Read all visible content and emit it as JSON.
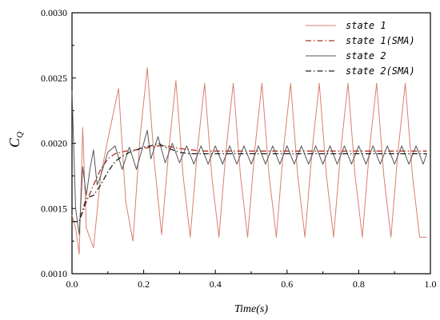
{
  "chart_data": {
    "type": "line",
    "xlabel": "Time(s)",
    "ylabel": "C",
    "ylabel_sub": "Q",
    "xlim": [
      0,
      1.0
    ],
    "ylim": [
      0.001,
      0.003
    ],
    "xticks": [
      "0.0",
      "0.2",
      "0.4",
      "0.6",
      "0.8",
      "1.0"
    ],
    "yticks": [
      "0.0010",
      "0.0015",
      "0.0020",
      "0.0025",
      "0.0030"
    ],
    "legend_position": "top-right",
    "series": [
      {
        "name": "state 1",
        "color": "#d9806e",
        "style": "solid",
        "x": [
          0.0,
          0.01,
          0.02,
          0.03,
          0.04,
          0.06,
          0.08,
          0.1,
          0.13,
          0.15,
          0.17,
          0.19,
          0.21,
          0.23,
          0.25,
          0.27,
          0.29,
          0.31,
          0.33,
          0.35,
          0.37,
          0.39,
          0.41,
          0.43,
          0.45,
          0.47,
          0.49,
          0.51,
          0.53,
          0.55,
          0.57,
          0.59,
          0.61,
          0.63,
          0.65,
          0.67,
          0.69,
          0.71,
          0.73,
          0.75,
          0.77,
          0.79,
          0.81,
          0.83,
          0.85,
          0.87,
          0.89,
          0.91,
          0.93,
          0.95,
          0.97,
          0.99
        ],
        "y": [
          0.00145,
          0.00135,
          0.00115,
          0.00212,
          0.00135,
          0.0012,
          0.00175,
          0.00203,
          0.00242,
          0.00155,
          0.00125,
          0.00205,
          0.00258,
          0.00185,
          0.0013,
          0.00195,
          0.00248,
          0.00175,
          0.00128,
          0.00195,
          0.00246,
          0.00175,
          0.00128,
          0.00195,
          0.00246,
          0.00175,
          0.00128,
          0.00195,
          0.00246,
          0.00175,
          0.00128,
          0.00195,
          0.00246,
          0.00175,
          0.00128,
          0.00195,
          0.00246,
          0.00175,
          0.00128,
          0.00195,
          0.00246,
          0.00175,
          0.00128,
          0.00195,
          0.00246,
          0.00175,
          0.00128,
          0.00195,
          0.00246,
          0.00175,
          0.00128,
          0.00128
        ]
      },
      {
        "name": "state 1(SMA)",
        "color": "#b03020",
        "style": "dashdot",
        "x": [
          0.0,
          0.02,
          0.04,
          0.06,
          0.08,
          0.1,
          0.12,
          0.15,
          0.18,
          0.2,
          0.22,
          0.24,
          0.26,
          0.28,
          0.3,
          0.33,
          0.36,
          0.4,
          0.45,
          0.5,
          0.6,
          0.7,
          0.8,
          0.9,
          0.99
        ],
        "y": [
          0.0014,
          0.0014,
          0.00155,
          0.00168,
          0.0018,
          0.00188,
          0.00192,
          0.00194,
          0.00195,
          0.00196,
          0.00197,
          0.00198,
          0.00198,
          0.00197,
          0.00196,
          0.00195,
          0.00194,
          0.00194,
          0.00194,
          0.00194,
          0.00194,
          0.00194,
          0.00194,
          0.00194,
          0.00194
        ]
      },
      {
        "name": "state 2",
        "color": "#555555",
        "style": "solid",
        "x": [
          0.0,
          0.01,
          0.02,
          0.03,
          0.04,
          0.05,
          0.06,
          0.07,
          0.08,
          0.1,
          0.12,
          0.14,
          0.16,
          0.18,
          0.2,
          0.21,
          0.22,
          0.24,
          0.26,
          0.28,
          0.3,
          0.32,
          0.34,
          0.36,
          0.38,
          0.4,
          0.42,
          0.44,
          0.46,
          0.48,
          0.5,
          0.52,
          0.54,
          0.56,
          0.58,
          0.6,
          0.62,
          0.64,
          0.66,
          0.68,
          0.7,
          0.72,
          0.74,
          0.76,
          0.78,
          0.8,
          0.82,
          0.84,
          0.86,
          0.88,
          0.9,
          0.92,
          0.94,
          0.96,
          0.98,
          0.99
        ],
        "y": [
          0.0024,
          0.0015,
          0.0013,
          0.00182,
          0.0016,
          0.0018,
          0.00195,
          0.00168,
          0.00175,
          0.00193,
          0.00198,
          0.0018,
          0.00197,
          0.0018,
          0.002,
          0.0021,
          0.00188,
          0.00205,
          0.00185,
          0.002,
          0.00185,
          0.00198,
          0.00184,
          0.00198,
          0.00184,
          0.00198,
          0.00184,
          0.00198,
          0.00184,
          0.00198,
          0.00184,
          0.00198,
          0.00184,
          0.00198,
          0.00184,
          0.00198,
          0.00184,
          0.00198,
          0.00184,
          0.00198,
          0.00184,
          0.00198,
          0.00184,
          0.00198,
          0.00184,
          0.00198,
          0.00184,
          0.00198,
          0.00184,
          0.00198,
          0.00184,
          0.00198,
          0.00184,
          0.00198,
          0.00184,
          0.00192
        ]
      },
      {
        "name": "state 2(SMA)",
        "color": "#222222",
        "style": "dashdot",
        "x": [
          0.0,
          0.02,
          0.04,
          0.06,
          0.08,
          0.1,
          0.12,
          0.14,
          0.16,
          0.18,
          0.2,
          0.22,
          0.24,
          0.26,
          0.28,
          0.3,
          0.33,
          0.36,
          0.4,
          0.45,
          0.5,
          0.6,
          0.7,
          0.8,
          0.9,
          0.99
        ],
        "y": [
          0.0014,
          0.0014,
          0.00158,
          0.0016,
          0.00168,
          0.00178,
          0.00186,
          0.0019,
          0.00193,
          0.00195,
          0.00197,
          0.00198,
          0.002,
          0.00197,
          0.00195,
          0.00193,
          0.00192,
          0.00192,
          0.00192,
          0.00192,
          0.00192,
          0.00192,
          0.00192,
          0.00192,
          0.00192,
          0.00192
        ]
      }
    ]
  }
}
